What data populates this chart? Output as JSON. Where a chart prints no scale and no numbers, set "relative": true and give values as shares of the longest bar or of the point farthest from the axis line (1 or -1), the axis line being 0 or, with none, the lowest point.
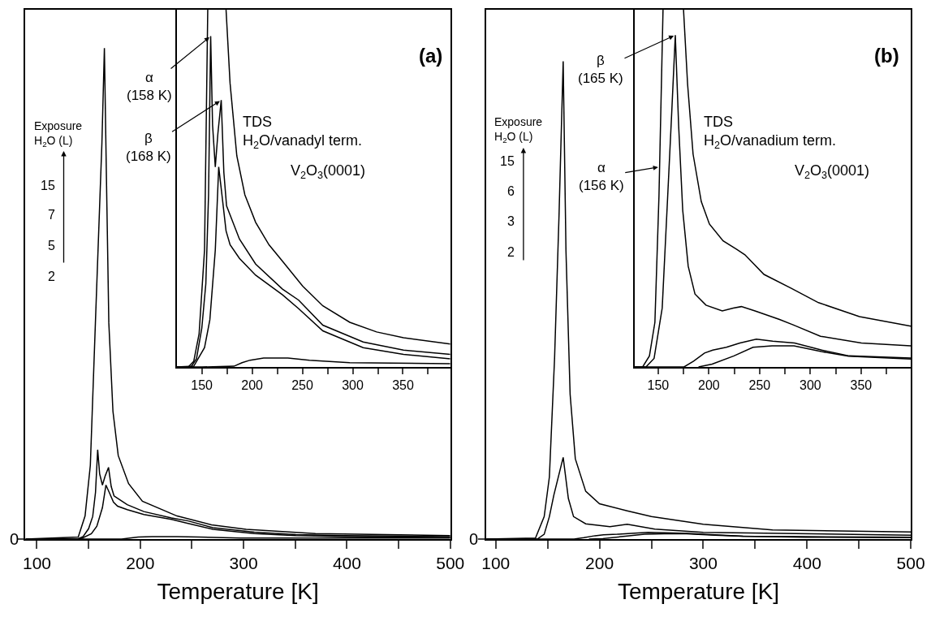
{
  "chart_data": [
    {
      "type": "line",
      "relative": true,
      "xlabel": "Temperature [K]",
      "xlim": [
        89,
        500
      ],
      "xticks": [
        100,
        {
          "value": 150,
          "label": null
        },
        200,
        {
          "value": 250,
          "label": null
        },
        300,
        {
          "value": 350,
          "label": null
        },
        400,
        {
          "value": 450,
          "label": null
        },
        500
      ],
      "series": [
        {
          "color": "#000000",
          "x": [
            89,
            150,
            182,
            190,
            198,
            211.5,
            235.6,
            257,
            297,
            397,
            500
          ],
          "values": [
            0,
            0,
            0,
            0.002,
            0.004,
            0.005,
            0.005,
            0.004,
            0.002,
            0.002,
            0.002
          ]
        },
        {
          "color": "#000000",
          "x": [
            89,
            142,
            152.7,
            158,
            163.4,
            166.8,
            170,
            174.1,
            178.1,
            187.4,
            203.5,
            230.2,
            246.3,
            270.3,
            310.4,
            350.5,
            397,
            450,
            500
          ],
          "values": [
            0,
            0,
            0.011,
            0.026,
            0.064,
            0.11,
            0.095,
            0.075,
            0.067,
            0.06,
            0.05,
            0.04,
            0.032,
            0.02,
            0.011,
            0.007,
            0.005,
            0.004,
            0.003
          ]
        },
        {
          "color": "#000000",
          "x": [
            89,
            139.3,
            144.7,
            150,
            154,
            156.7,
            158.8,
            160.7,
            163.4,
            166,
            169.3,
            171.9,
            174.6,
            176.7,
            187.4,
            203.5,
            230.2,
            246.3,
            270.3,
            310.4,
            350.5,
            397,
            450,
            500
          ],
          "values": [
            0,
            0,
            0.005,
            0.021,
            0.046,
            0.095,
            0.182,
            0.133,
            0.11,
            0.128,
            0.146,
            0.107,
            0.088,
            0.085,
            0.07,
            0.056,
            0.043,
            0.037,
            0.023,
            0.014,
            0.009,
            0.007,
            0.006,
            0.005
          ]
        },
        {
          "color": "#000000",
          "x": [
            89,
            140,
            146.6,
            151.7,
            156.6,
            162.9,
            165.3,
            167.3,
            169.6,
            173.6,
            178.7,
            188.7,
            202.1,
            235.6,
            269,
            302.5,
            369.5,
            500
          ],
          "values": [
            0,
            0.004,
            0.047,
            0.15,
            0.44,
            0.806,
            1.0,
            0.734,
            0.44,
            0.26,
            0.17,
            0.113,
            0.077,
            0.047,
            0.029,
            0.02,
            0.011,
            0.007
          ]
        }
      ],
      "annotations": [
        "Exposure\nH$_{2}$O (L)",
        "15",
        "7",
        "5",
        "2",
        "(a)",
        "0"
      ]
    },
    {
      "type": "line",
      "relative": true,
      "xlim": [
        125,
        397
      ],
      "xticks": [
        150,
        {
          "value": 175,
          "label": null
        },
        200,
        {
          "value": 225,
          "label": null
        },
        250,
        {
          "value": 275,
          "label": null
        },
        300,
        {
          "value": 325,
          "label": null
        },
        350,
        {
          "value": 375,
          "label": null
        }
      ],
      "series": [
        {
          "color": "#000000",
          "x": [
            125,
            150,
            182,
            190,
            198,
            211.5,
            235.6,
            257,
            297,
            397
          ],
          "values": [
            0,
            0,
            0.002,
            0.012,
            0.019,
            0.025,
            0.025,
            0.019,
            0.012,
            0.009
          ]
        },
        {
          "color": "#000000",
          "x": [
            125,
            142,
            152.7,
            158,
            163.4,
            166.8,
            170,
            174.1,
            178.1,
            187.4,
            203.5,
            230.2,
            246.3,
            270.3,
            310.4,
            350.5,
            397
          ],
          "values": [
            0,
            0.002,
            0.054,
            0.132,
            0.327,
            0.56,
            0.482,
            0.381,
            0.342,
            0.304,
            0.257,
            0.202,
            0.163,
            0.101,
            0.054,
            0.035,
            0.023
          ]
        },
        {
          "color": "#000000",
          "x": [
            125,
            139.3,
            144.7,
            150,
            154,
            156.7,
            158.8,
            160.7,
            163.4,
            166,
            169.3,
            171.9,
            174.6,
            176.7,
            187.4,
            203.5,
            230.2,
            246.3,
            270.3,
            310.4,
            350.5,
            397
          ],
          "values": [
            0,
            0,
            0.023,
            0.109,
            0.233,
            0.482,
            0.926,
            0.677,
            0.56,
            0.654,
            0.747,
            0.545,
            0.451,
            0.436,
            0.358,
            0.288,
            0.218,
            0.187,
            0.117,
            0.07,
            0.047,
            0.035
          ]
        },
        {
          "color": "#000000",
          "x": [
            125,
            136.6,
            142,
            147.3,
            152.7,
            155.9,
            165,
            174.1,
            178.1,
            184.8,
            192.8,
            203.5,
            216.8,
            230.2,
            250.3,
            270.3,
            297.1,
            323.8,
            350.5,
            397
          ],
          "values": [
            0,
            0,
            0.016,
            0.093,
            0.327,
            1.0,
            null,
            1.0,
            0.794,
            0.591,
            0.482,
            0.405,
            0.342,
            0.296,
            0.226,
            0.171,
            0.125,
            0.098,
            0.082,
            0.064
          ]
        }
      ],
      "annotations": [
        {
          "text": "α\n(158 K)",
          "x": 158.8,
          "y": 0.926
        },
        {
          "text": "β\n(168 K)",
          "x": 169.3,
          "y": 0.747
        },
        "TDS\nH$_{2}$O/vanadyl term.",
        "V$_{2}$O$_{3}$(0001)"
      ]
    },
    {
      "type": "line",
      "relative": true,
      "xlabel": "Temperature [K]",
      "xlim": [
        90.7,
        500
      ],
      "xticks": [
        100,
        {
          "value": 150,
          "label": null
        },
        200,
        {
          "value": 250,
          "label": null
        },
        300,
        {
          "value": 350,
          "label": null
        },
        400,
        {
          "value": 450,
          "label": null
        },
        500
      ],
      "series": [
        {
          "color": "#000000",
          "x": [
            189.8,
            203.2,
            224.7,
            243.5,
            262.3,
            283.8,
            310.8,
            337.6,
            399,
            500
          ],
          "values": [
            0,
            0.001,
            0.006,
            0.01,
            0.011,
            0.011,
            0.008,
            0.006,
            0.004,
            0.003
          ]
        },
        {
          "color": "#000000",
          "x": [
            91,
            175.5,
            184.9,
            195.7,
            203.8,
            217.2,
            230.6,
            246.8,
            262.9,
            284.4,
            311.3,
            338.2,
            399,
            500
          ],
          "values": [
            0,
            0,
            0.003,
            0.007,
            0.009,
            0.01,
            0.012,
            0.014,
            0.013,
            0.012,
            0.009,
            0.006,
            0.005,
            0.004
          ]
        },
        {
          "color": "#000000",
          "x": [
            91,
            140,
            146.7,
            151.7,
            156,
            165,
            170,
            175,
            186.7,
            210,
            226.7,
            253.3,
            300,
            500
          ],
          "values": [
            0,
            0,
            0.01,
            0.047,
            0.092,
            0.171,
            0.085,
            0.047,
            0.032,
            0.026,
            0.031,
            0.021,
            0.014,
            0.008
          ]
        },
        {
          "color": "#000000",
          "x": [
            91,
            138.3,
            146.7,
            151.7,
            156.7,
            161,
            165,
            167.7,
            171.7,
            176.7,
            186.7,
            200,
            226.7,
            250,
            300,
            366.7,
            500
          ],
          "values": [
            0,
            0.002,
            0.047,
            0.13,
            0.378,
            0.678,
            1.0,
            0.603,
            0.303,
            0.168,
            0.1,
            0.074,
            0.059,
            0.047,
            0.031,
            0.019,
            0.015
          ]
        }
      ],
      "annotations": [
        "Exposure\nH$_{2}$O (L)",
        "15",
        "6",
        "3",
        "2",
        "(b)",
        "0"
      ]
    },
    {
      "type": "line",
      "relative": true,
      "xlim": [
        127,
        399
      ],
      "xticks": [
        150,
        {
          "value": 175,
          "label": null
        },
        200,
        {
          "value": 225,
          "label": null
        },
        250,
        {
          "value": 275,
          "label": null
        },
        300,
        {
          "value": 325,
          "label": null
        },
        350,
        {
          "value": 375,
          "label": null
        }
      ],
      "series": [
        {
          "color": "#000000",
          "x": [
            189.8,
            203.2,
            224.7,
            243.5,
            262.3,
            283.8,
            310.8,
            337.6,
            399
          ],
          "values": [
            0,
            0.008,
            0.031,
            0.055,
            0.059,
            0.059,
            0.043,
            0.03,
            0.022
          ]
        },
        {
          "color": "#000000",
          "x": [
            127,
            175.5,
            184.9,
            195.7,
            203.8,
            217.2,
            230.6,
            246.8,
            262.9,
            284.4,
            311.3,
            338.2,
            399
          ],
          "values": [
            0,
            0,
            0.016,
            0.039,
            0.047,
            0.055,
            0.067,
            0.078,
            0.072,
            0.067,
            0.047,
            0.031,
            0.025
          ]
        },
        {
          "color": "#000000",
          "x": [
            127,
            138,
            146,
            154,
            159.4,
            163.4,
            166.9,
            170.2,
            174.2,
            179.6,
            186.3,
            197.1,
            213.2,
            224,
            232,
            245.5,
            269.6,
            283,
            310,
            350.3,
            399
          ],
          "values": [
            0,
            0,
            0.024,
            0.165,
            0.478,
            0.714,
            0.929,
            0.675,
            0.439,
            0.282,
            0.204,
            0.173,
            0.157,
            0.165,
            0.169,
            0.157,
            0.133,
            0.118,
            0.086,
            0.067,
            0.059
          ]
        },
        {
          "color": "#000000",
          "x": [
            127,
            134.7,
            141.4,
            146.8,
            150.8,
            154.8,
            165,
            175,
            179,
            184.4,
            192.5,
            200.5,
            214,
            227.4,
            235.5,
            254.3,
            281.2,
            308,
            348.4,
            399
          ],
          "values": [
            0,
            0,
            0.031,
            0.125,
            0.478,
            1.0,
            null,
            1.0,
            0.792,
            0.596,
            0.463,
            0.4,
            0.353,
            0.329,
            0.314,
            0.259,
            0.22,
            0.18,
            0.141,
            0.114
          ]
        }
      ],
      "annotations": [
        {
          "text": "β\n(165 K)",
          "x": 166.9,
          "y": 0.929
        },
        {
          "text": "α\n(156 K)",
          "x": 151.5,
          "y": 0.56
        },
        "TDS\nH$_{2}$O/vanadium term.",
        "V$_{2}$O$_{3}$(0001)"
      ]
    }
  ]
}
